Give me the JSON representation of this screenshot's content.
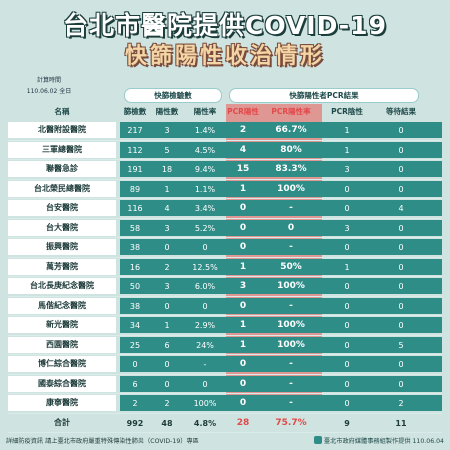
{
  "header": {
    "title": "台北市醫院提供COVID-19",
    "subtitle": "快篩陽性收治情形"
  },
  "calc": {
    "label": "計算時間",
    "date": "110.06.02 全日"
  },
  "groups": {
    "rapid": "快篩檢驗數",
    "pcr": "快篩陽性者PCR結果"
  },
  "columns": [
    "名稱",
    "篩檢數",
    "陽性數",
    "陽性率",
    "PCR陽性",
    "PCR陽性率",
    "PCR陰性",
    "等待結果"
  ],
  "rows": [
    {
      "name": "北醫附設醫院",
      "screen": "217",
      "pos": "3",
      "rate": "1.4%",
      "pcr_pos": "2",
      "pcr_rate": "66.7%",
      "pcr_neg": "1",
      "wait": "0"
    },
    {
      "name": "三軍總醫院",
      "screen": "112",
      "pos": "5",
      "rate": "4.5%",
      "pcr_pos": "4",
      "pcr_rate": "80%",
      "pcr_neg": "1",
      "wait": "0"
    },
    {
      "name": "聯醫急診",
      "screen": "191",
      "pos": "18",
      "rate": "9.4%",
      "pcr_pos": "15",
      "pcr_rate": "83.3%",
      "pcr_neg": "3",
      "wait": "0"
    },
    {
      "name": "台北榮民總醫院",
      "screen": "89",
      "pos": "1",
      "rate": "1.1%",
      "pcr_pos": "1",
      "pcr_rate": "100%",
      "pcr_neg": "0",
      "wait": "0"
    },
    {
      "name": "台安醫院",
      "screen": "116",
      "pos": "4",
      "rate": "3.4%",
      "pcr_pos": "0",
      "pcr_rate": "-",
      "pcr_neg": "0",
      "wait": "4"
    },
    {
      "name": "台大醫院",
      "screen": "58",
      "pos": "3",
      "rate": "5.2%",
      "pcr_pos": "0",
      "pcr_rate": "0",
      "pcr_neg": "3",
      "wait": "0"
    },
    {
      "name": "振興醫院",
      "screen": "38",
      "pos": "0",
      "rate": "0",
      "pcr_pos": "0",
      "pcr_rate": "-",
      "pcr_neg": "0",
      "wait": "0"
    },
    {
      "name": "萬芳醫院",
      "screen": "16",
      "pos": "2",
      "rate": "12.5%",
      "pcr_pos": "1",
      "pcr_rate": "50%",
      "pcr_neg": "1",
      "wait": "0"
    },
    {
      "name": "台北長庚紀念醫院",
      "screen": "50",
      "pos": "3",
      "rate": "6.0%",
      "pcr_pos": "3",
      "pcr_rate": "100%",
      "pcr_neg": "0",
      "wait": "0"
    },
    {
      "name": "馬偕紀念醫院",
      "screen": "38",
      "pos": "0",
      "rate": "0",
      "pcr_pos": "0",
      "pcr_rate": "-",
      "pcr_neg": "0",
      "wait": "0"
    },
    {
      "name": "新光醫院",
      "screen": "34",
      "pos": "1",
      "rate": "2.9%",
      "pcr_pos": "1",
      "pcr_rate": "100%",
      "pcr_neg": "0",
      "wait": "0"
    },
    {
      "name": "西園醫院",
      "screen": "25",
      "pos": "6",
      "rate": "24%",
      "pcr_pos": "1",
      "pcr_rate": "100%",
      "pcr_neg": "0",
      "wait": "5"
    },
    {
      "name": "博仁綜合醫院",
      "screen": "0",
      "pos": "0",
      "rate": "-",
      "pcr_pos": "0",
      "pcr_rate": "-",
      "pcr_neg": "0",
      "wait": "0"
    },
    {
      "name": "國泰綜合醫院",
      "screen": "6",
      "pos": "0",
      "rate": "0",
      "pcr_pos": "0",
      "pcr_rate": "-",
      "pcr_neg": "0",
      "wait": "0"
    },
    {
      "name": "康寧醫院",
      "screen": "2",
      "pos": "2",
      "rate": "100%",
      "pcr_pos": "0",
      "pcr_rate": "-",
      "pcr_neg": "0",
      "wait": "2"
    }
  ],
  "total": {
    "name": "合計",
    "screen": "992",
    "pos": "48",
    "rate": "4.8%",
    "pcr_pos": "28",
    "pcr_rate": "75.7%",
    "pcr_neg": "9",
    "wait": "11"
  },
  "footer": {
    "left": "詳細防疫資訊 請上臺北市政府嚴重特殊傳染性肺炎（COVID-19）專區",
    "right": "臺北市政府媒體事務組製作提供 110.06.04"
  },
  "colors": {
    "row_teal": "#2f8d88",
    "pcr_band": "#e28a86",
    "highlight_red": "#e14a4a"
  }
}
